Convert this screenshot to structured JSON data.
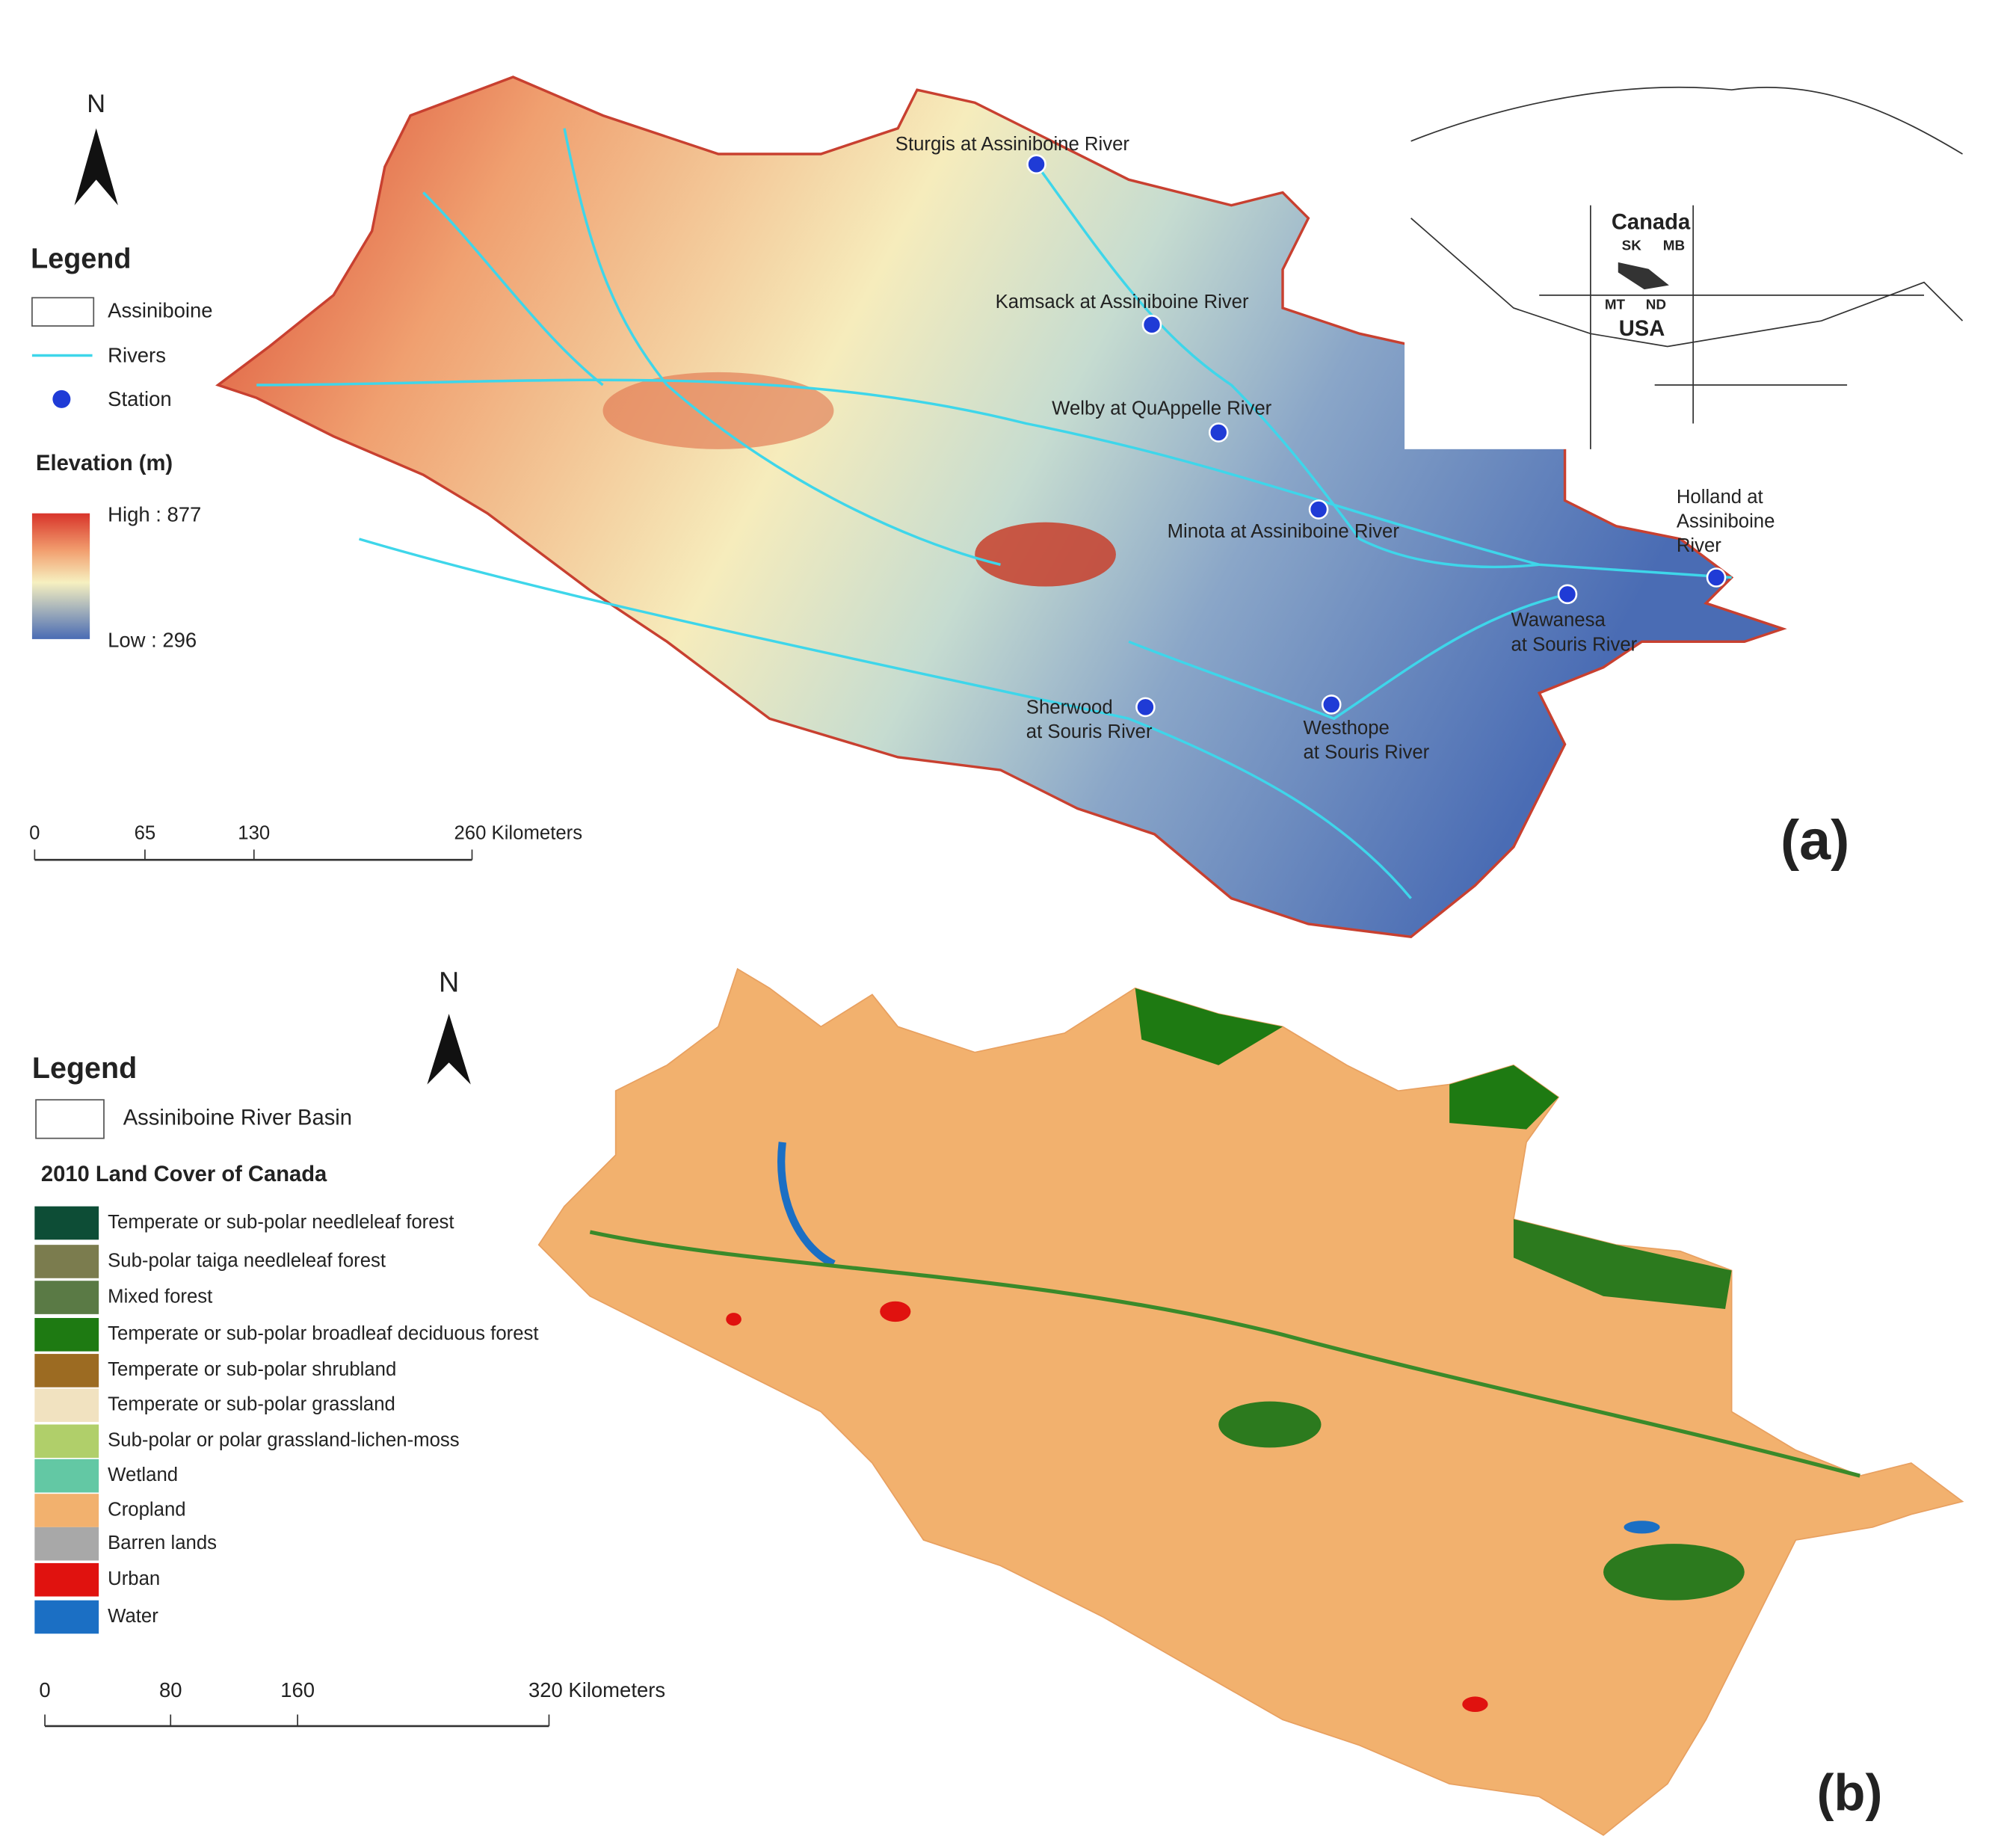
{
  "panel_a": {
    "label": "(a)",
    "north": "N",
    "legend": {
      "title": "Legend",
      "items": [
        "Assiniboine",
        "Rivers",
        "Station"
      ]
    },
    "elevation": {
      "title": "Elevation (m)",
      "high": "High : 877",
      "low": "Low : 296"
    },
    "scale": [
      "0",
      "65",
      "130",
      "260 Kilometers"
    ],
    "stations": [
      [
        "Sturgis at Assiniboine River"
      ],
      [
        "Kamsack at Assiniboine River"
      ],
      [
        "Welby at QuAppelle River"
      ],
      [
        "Minota at Assiniboine River"
      ],
      [
        "Holland at",
        "Assiniboine",
        "River"
      ],
      [
        "Wawanesa",
        "at Souris River"
      ],
      [
        "Sherwood",
        "at Souris River"
      ],
      [
        "Westhope",
        "at Souris River"
      ]
    ],
    "inset": [
      "Canada",
      "SK",
      "MB",
      "MT",
      "ND",
      "USA"
    ]
  },
  "panel_b": {
    "label": "(b)",
    "north": "N",
    "legend": {
      "title": "Legend",
      "basin": "Assiniboine River Basin",
      "subtitle": "2010 Land Cover of Canada",
      "items": [
        {
          "label": "Temperate or sub-polar needleleaf forest",
          "color": "#0d4d36"
        },
        {
          "label": "Sub-polar taiga needleleaf forest",
          "color": "#7b7c4e"
        },
        {
          "label": "Mixed forest",
          "color": "#5a7a45"
        },
        {
          "label": "Temperate or sub-polar broadleaf deciduous forest",
          "color": "#1e7a12"
        },
        {
          "label": "Temperate or sub-polar shrubland",
          "color": "#9c6b22"
        },
        {
          "label": "Temperate or sub-polar grassland",
          "color": "#f1e2c0"
        },
        {
          "label": "Sub-polar or polar grassland-lichen-moss",
          "color": "#b0cf6a"
        },
        {
          "label": "Wetland",
          "color": "#63c8a4"
        },
        {
          "label": "Cropland",
          "color": "#f2b16e"
        },
        {
          "label": "Barren lands",
          "color": "#a8a8a8"
        },
        {
          "label": "Urban",
          "color": "#e0120f"
        },
        {
          "label": "Water",
          "color": "#1b6fc4"
        }
      ]
    },
    "scale": [
      "0",
      "80",
      "160",
      "320 Kilometers"
    ]
  }
}
